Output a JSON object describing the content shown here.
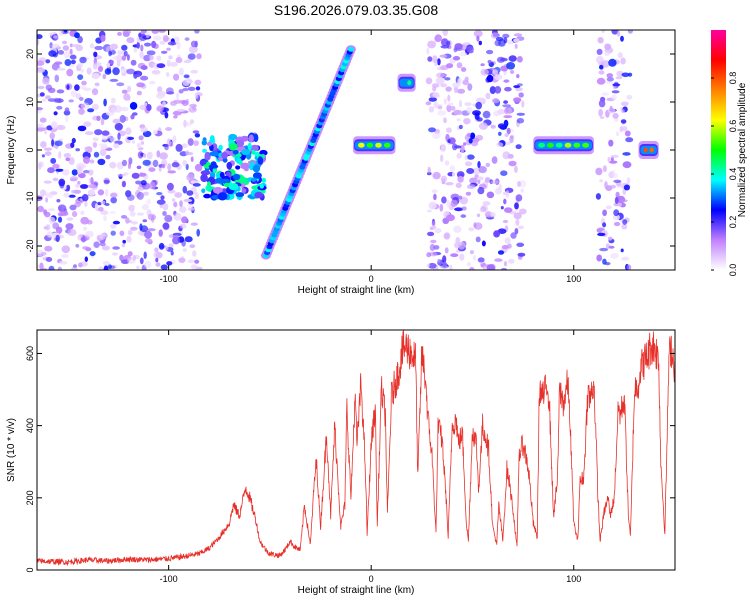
{
  "title": "S196.2026.079.03.35.G08",
  "chart_data": [
    {
      "type": "heatmap",
      "name": "spectrogram",
      "xlabel": "Height of straight line (km)",
      "ylabel": "Frequency (Hz)",
      "xlim": [
        -165,
        150
      ],
      "ylim": [
        -25,
        25
      ],
      "xticks": [
        {
          "value": -100,
          "label": "-100"
        },
        {
          "value": 0,
          "label": "0"
        },
        {
          "value": 100,
          "label": "100"
        }
      ],
      "yticks": [
        {
          "value": -20,
          "label": "-20"
        },
        {
          "value": -10,
          "label": "-10"
        },
        {
          "value": 0,
          "label": "0"
        },
        {
          "value": 10,
          "label": "10"
        },
        {
          "value": 20,
          "label": "20"
        }
      ],
      "colorbar": {
        "label": "Normalized spectral amplitude",
        "range": [
          0.0,
          1.0
        ],
        "ticks": [
          {
            "value": 0.0,
            "label": "0.0"
          },
          {
            "value": 0.2,
            "label": "0.2"
          },
          {
            "value": 0.4,
            "label": "0.4"
          },
          {
            "value": 0.6,
            "label": "0.6"
          },
          {
            "value": 0.8,
            "label": "0.8"
          }
        ],
        "colors": [
          "#ffffff",
          "#c080ff",
          "#0000ff",
          "#00ffff",
          "#00ff00",
          "#ffff00",
          "#ff8000",
          "#ff0000",
          "#ff00a0"
        ]
      },
      "gaps": [
        [
          -85,
          -77
        ],
        [
          -55,
          -52
        ],
        [
          -10,
          -4
        ],
        [
          12,
          15
        ],
        [
          23,
          28
        ],
        [
          75,
          80
        ],
        [
          110,
          112
        ],
        [
          128,
          131
        ],
        [
          140,
          150
        ]
      ],
      "features": [
        {
          "kind": "cluster",
          "x_range": [
            -83,
            -53
          ],
          "freq_range": [
            -10,
            3
          ],
          "peak_amplitude": 0.45
        },
        {
          "kind": "chirp",
          "x_start": -52,
          "freq_start": -22,
          "x_end": -10,
          "freq_end": 21,
          "peak_amplitude": 0.4
        },
        {
          "kind": "band",
          "x_range": [
            -9,
            12
          ],
          "freq": 1,
          "peak_amplitude": 0.7
        },
        {
          "kind": "band",
          "x_range": [
            13,
            22
          ],
          "freq": 14,
          "peak_amplitude": 0.45
        },
        {
          "kind": "band",
          "x_range": [
            80,
            110
          ],
          "freq": 1,
          "peak_amplitude": 0.6
        },
        {
          "kind": "band",
          "x_range": [
            132,
            142
          ],
          "freq": 0,
          "peak_amplitude": 0.85
        }
      ]
    },
    {
      "type": "line",
      "name": "snr",
      "xlabel": "Height of straight line (km)",
      "ylabel": "SNR (10 * v/v)",
      "xlim": [
        -165,
        150
      ],
      "ylim": [
        0,
        665
      ],
      "color": "#e8302a",
      "xticks": [
        {
          "value": -100,
          "label": "-100"
        },
        {
          "value": 0,
          "label": "0"
        },
        {
          "value": 100,
          "label": "100"
        }
      ],
      "yticks": [
        {
          "value": 0,
          "label": "0"
        },
        {
          "value": 200,
          "label": "200"
        },
        {
          "value": 400,
          "label": "400"
        },
        {
          "value": 600,
          "label": "600"
        }
      ],
      "series": [
        {
          "name": "SNR",
          "x": [
            -165,
            -150,
            -140,
            -130,
            -120,
            -110,
            -100,
            -95,
            -90,
            -85,
            -80,
            -75,
            -70,
            -68,
            -65,
            -62,
            -60,
            -57,
            -55,
            -52,
            -50,
            -45,
            -42,
            -40,
            -38,
            -35,
            -33,
            -30,
            -28,
            -27,
            -25,
            -22,
            -20,
            -18,
            -15,
            -13,
            -12,
            -10,
            -8,
            -7,
            -5,
            -3,
            -2,
            0,
            2,
            3,
            5,
            7,
            8,
            10,
            12,
            14,
            15,
            17,
            20,
            22,
            23,
            25,
            27,
            28,
            30,
            32,
            33,
            35,
            37,
            38,
            40,
            42,
            43,
            45,
            47,
            48,
            50,
            52,
            53,
            55,
            57,
            58,
            60,
            62,
            63,
            65,
            67,
            68,
            70,
            72,
            73,
            75,
            77,
            78,
            80,
            82,
            83,
            85,
            87,
            88,
            90,
            92,
            93,
            95,
            97,
            98,
            100,
            102,
            103,
            105,
            107,
            108,
            110,
            112,
            113,
            115,
            117,
            118,
            120,
            122,
            123,
            125,
            127,
            128,
            130,
            132,
            133,
            135,
            137,
            138,
            140,
            142,
            143,
            145,
            147,
            148,
            150
          ],
          "values": [
            25,
            22,
            28,
            25,
            30,
            28,
            32,
            35,
            40,
            45,
            60,
            90,
            130,
            180,
            150,
            230,
            200,
            140,
            80,
            55,
            45,
            40,
            60,
            80,
            65,
            55,
            180,
            70,
            250,
            300,
            120,
            380,
            150,
            400,
            120,
            180,
            450,
            200,
            480,
            350,
            520,
            300,
            100,
            350,
            450,
            120,
            500,
            430,
            150,
            480,
            520,
            560,
            600,
            620,
            600,
            580,
            250,
            600,
            520,
            420,
            320,
            100,
            400,
            360,
            200,
            90,
            400,
            420,
            350,
            380,
            130,
            80,
            390,
            350,
            220,
            400,
            360,
            330,
            120,
            70,
            180,
            80,
            280,
            250,
            170,
            60,
            320,
            350,
            300,
            260,
            130,
            90,
            500,
            480,
            520,
            460,
            150,
            250,
            500,
            460,
            520,
            440,
            130,
            80,
            240,
            260,
            500,
            470,
            520,
            200,
            80,
            160,
            200,
            150,
            200,
            450,
            430,
            480,
            150,
            90,
            500,
            520,
            560,
            580,
            600,
            620,
            620,
            580,
            300,
            100,
            580,
            620,
            560
          ]
        }
      ]
    }
  ]
}
